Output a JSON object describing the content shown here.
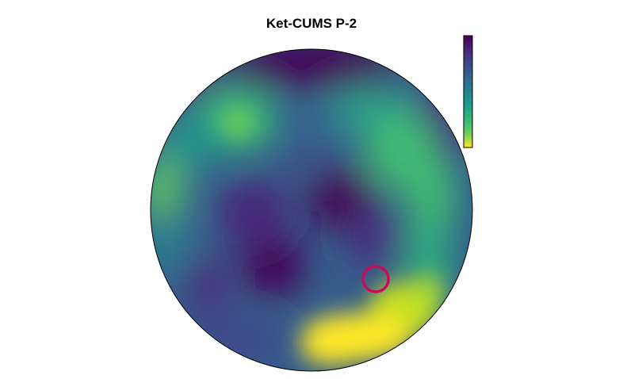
{
  "title": "Ket-CUMS P-2",
  "colormap": "viridis",
  "colorbar": {
    "orientation": "vertical",
    "ticks_shown": false,
    "top_color": "#440154",
    "bottom_color": "#fde725"
  },
  "marker": {
    "shape": "circle",
    "color": "#cc0a5a",
    "fill": "none"
  },
  "arena": {
    "shape": "circle",
    "border_color": "#000000"
  }
}
